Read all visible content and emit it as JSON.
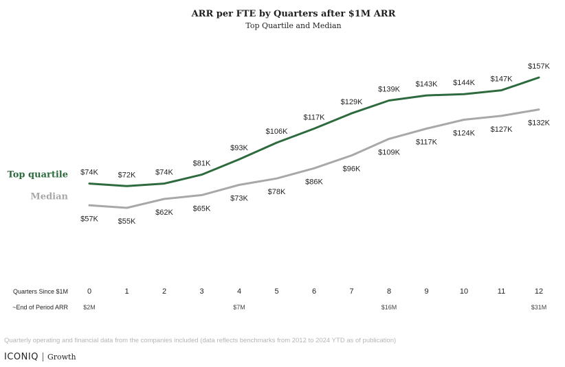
{
  "chart_data": {
    "type": "line",
    "title": "ARR per FTE by Quarters after $1M ARR",
    "subtitle": "Top Quartile and Median",
    "x_label": "Quarters Since $1M",
    "x": [
      0,
      1,
      2,
      3,
      4,
      5,
      6,
      7,
      8,
      9,
      10,
      11,
      12
    ],
    "series": [
      {
        "name": "Top quartile",
        "color": "#2d6a3e",
        "values": [
          74,
          72,
          74,
          81,
          93,
          106,
          117,
          129,
          139,
          143,
          144,
          147,
          157
        ],
        "labels": [
          "$74K",
          "$72K",
          "$74K",
          "$81K",
          "$93K",
          "$106K",
          "$117K",
          "$129K",
          "$139K",
          "$143K",
          "$144K",
          "$147K",
          "$157K"
        ]
      },
      {
        "name": "Median",
        "color": "#a8a8a8",
        "values": [
          57,
          55,
          62,
          65,
          73,
          78,
          86,
          96,
          109,
          117,
          124,
          127,
          132
        ],
        "labels": [
          "$57K",
          "$55K",
          "$62K",
          "$65K",
          "$73K",
          "$78K",
          "$86K",
          "$96K",
          "$109K",
          "$117K",
          "$124K",
          "$127K",
          "$132K"
        ]
      }
    ],
    "end_of_period_arr": {
      "label": "~End of Period ARR",
      "ticks": [
        {
          "x": 0,
          "text": "$2M"
        },
        {
          "x": 4,
          "text": "$7M"
        },
        {
          "x": 8,
          "text": "$16M"
        },
        {
          "x": 12,
          "text": "$31M"
        }
      ]
    },
    "grid": false,
    "legend": "left, inline labels"
  },
  "footnote": "Quarterly operating and financial data from the companies included (data reflects benchmarks from 2012 to 2024 YTD as of publication)",
  "logo": {
    "brand": "ICONIQ",
    "sub": "Growth"
  }
}
